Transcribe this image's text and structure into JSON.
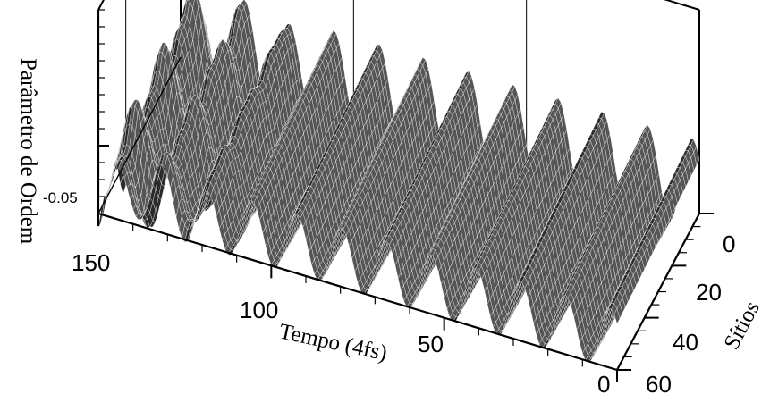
{
  "chart_data": {
    "type": "surface",
    "title": "",
    "zlabel": "Parâmetro de Ordem",
    "xlabel": "Tempo (4fs)",
    "ylabel": "Sítios",
    "x_range": [
      0,
      150
    ],
    "y_range": [
      0,
      60
    ],
    "x_ticks": [
      "150",
      "100",
      "50",
      "0"
    ],
    "y_ticks": [
      "0",
      "20",
      "40",
      "60"
    ],
    "z_ticks": [
      "-0.05"
    ],
    "x_tick_values": [
      150,
      100,
      50,
      0
    ],
    "y_tick_values": [
      0,
      20,
      40,
      60
    ],
    "z_tick_values": [
      -0.05
    ],
    "grid": true,
    "surface_color": "#3a3a3a",
    "mesh_color": "#ffffff"
  }
}
